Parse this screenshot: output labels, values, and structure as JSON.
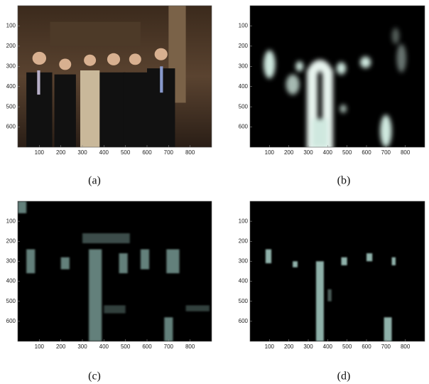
{
  "panels": [
    {
      "label": "(a)"
    },
    {
      "label": "(b)"
    },
    {
      "label": "(c)"
    },
    {
      "label": "(d)"
    }
  ],
  "axes": {
    "xlim": [
      0,
      900
    ],
    "ylim": [
      0,
      700
    ],
    "xticks": [
      100,
      200,
      300,
      400,
      500,
      600,
      700,
      800
    ],
    "yticks": [
      100,
      200,
      300,
      400,
      500,
      600
    ]
  }
}
